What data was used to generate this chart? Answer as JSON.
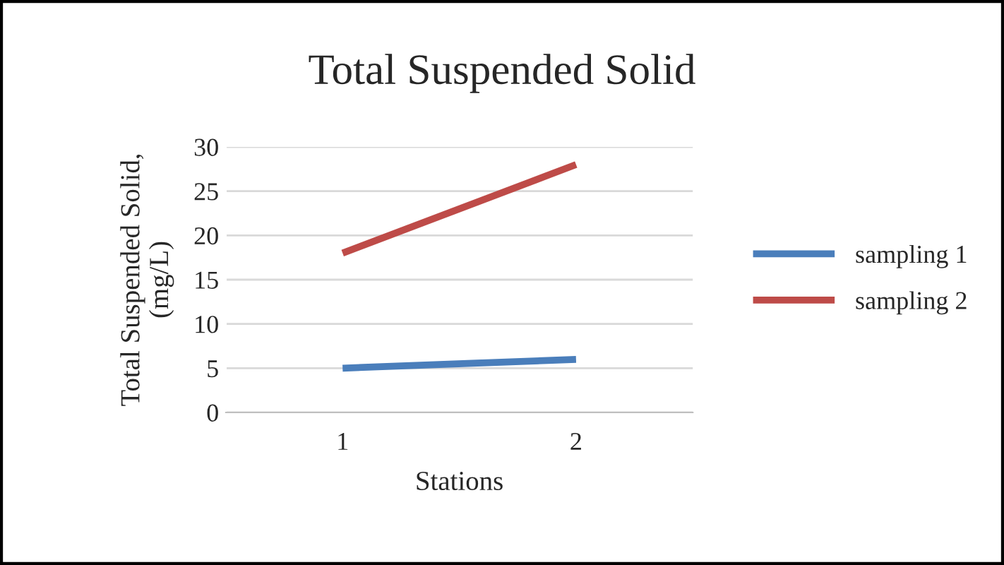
{
  "chart_data": {
    "type": "line",
    "title": "Total Suspended Solid",
    "xlabel": "Stations",
    "ylabel": "Total Suspended Solid,\n(mg/L)",
    "categories": [
      "1",
      "2"
    ],
    "series": [
      {
        "name": "sampling 1",
        "color": "#4a7ebb",
        "values": [
          5,
          6
        ]
      },
      {
        "name": "sampling 2",
        "color": "#be4b48",
        "values": [
          18,
          28
        ]
      }
    ],
    "ylim": [
      0,
      30
    ],
    "yticks": [
      0,
      5,
      10,
      15,
      20,
      25,
      30
    ],
    "grid": "y",
    "legend": "right",
    "marker": "none",
    "line_style": "solid"
  }
}
